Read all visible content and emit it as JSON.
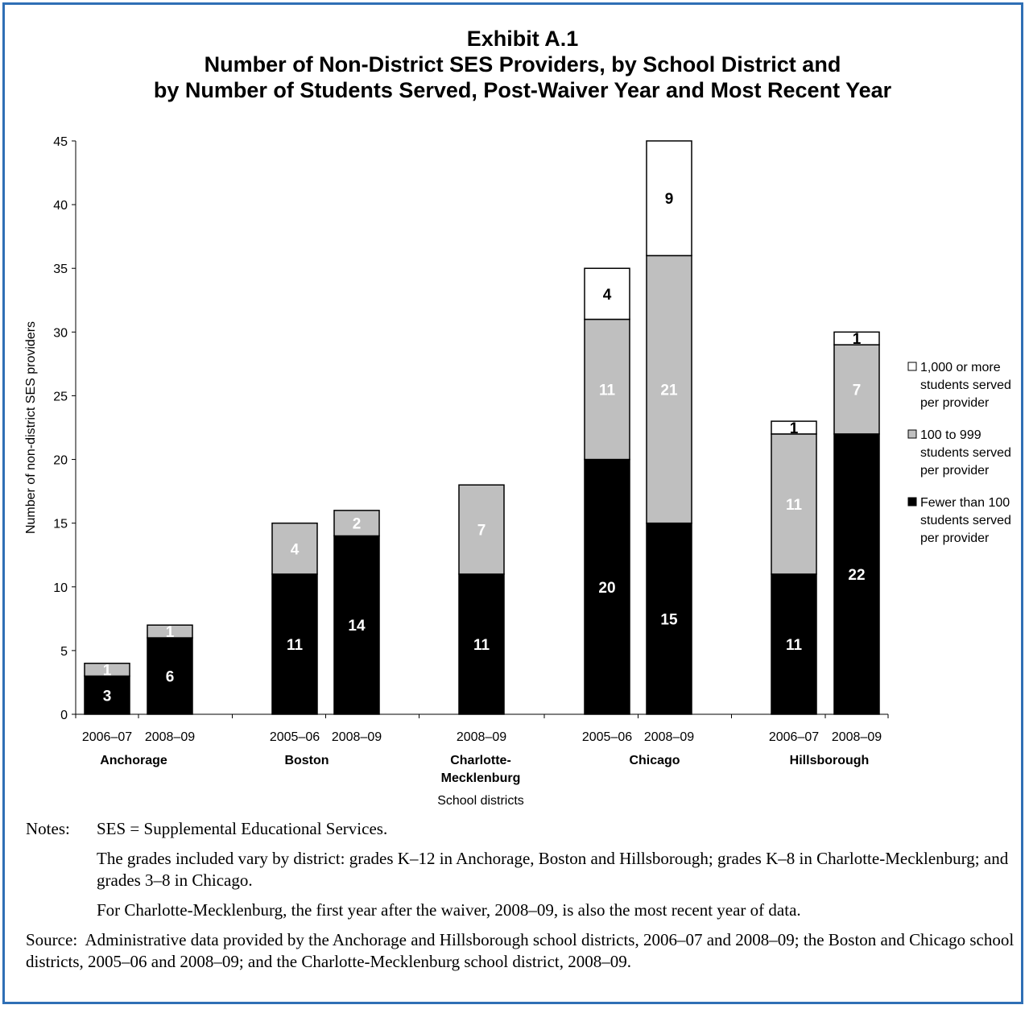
{
  "chart_data": {
    "type": "bar",
    "stacked": true,
    "title_lines": [
      "Exhibit A.1",
      "Number of Non-District SES Providers, by School District and",
      "by Number of Students Served, Post-Waiver Year and Most Recent Year"
    ],
    "xlabel": "School districts",
    "ylabel": "Number of non-district SES providers",
    "ylim": [
      0,
      45
    ],
    "yticks": [
      0,
      5,
      10,
      15,
      20,
      25,
      30,
      35,
      40,
      45
    ],
    "grid": false,
    "legend_position": "right",
    "groups": [
      {
        "label": "Anchorage",
        "label_lines": [
          "Anchorage"
        ],
        "categories": [
          "2006–07",
          "2008–09"
        ]
      },
      {
        "label": "Boston",
        "label_lines": [
          "Boston"
        ],
        "categories": [
          "2005–06",
          "2008–09"
        ]
      },
      {
        "label": "Charlotte-Mecklenburg",
        "label_lines": [
          "Charlotte-",
          "Mecklenburg"
        ],
        "categories": [
          "2008–09"
        ]
      },
      {
        "label": "Chicago",
        "label_lines": [
          "Chicago"
        ],
        "categories": [
          "2005–06",
          "2008–09"
        ]
      },
      {
        "label": "Hillsborough",
        "label_lines": [
          "Hillsborough"
        ],
        "categories": [
          "2006–07",
          "2008–09"
        ]
      }
    ],
    "series": [
      {
        "name": "Fewer than 100 students served per provider",
        "legend_lines": [
          "Fewer than 100",
          "students served",
          "per provider"
        ],
        "color": "#000000",
        "label_color": "#ffffff",
        "values": [
          3,
          6,
          11,
          14,
          11,
          20,
          15,
          11,
          22
        ]
      },
      {
        "name": "100 to 999 students served per provider",
        "legend_lines": [
          "100 to 999",
          "students served",
          "per provider"
        ],
        "color": "#bfbfbf",
        "label_color": "#ffffff",
        "values": [
          1,
          1,
          4,
          2,
          7,
          11,
          21,
          11,
          7
        ]
      },
      {
        "name": "1,000 or more students served per provider",
        "legend_lines": [
          "1,000 or more",
          "students served",
          "per provider"
        ],
        "color": "#ffffff",
        "label_color": "#000000",
        "values": [
          0,
          0,
          0,
          0,
          0,
          4,
          9,
          1,
          1
        ]
      }
    ]
  },
  "notes": {
    "label": "Notes:",
    "line1": "SES = Supplemental Educational Services.",
    "line2": "The grades included vary by district: grades K–12 in Anchorage, Boston and Hillsborough; grades K–8 in Charlotte-Mecklenburg; and grades 3–8 in Chicago.",
    "line3": "For Charlotte-Mecklenburg, the first year after the waiver, 2008–09, is also the most recent year of data."
  },
  "source": {
    "label": "Source:",
    "text": "Administrative data provided by the Anchorage and Hillsborough school districts, 2006–07 and 2008–09; the Boston and Chicago school districts, 2005–06 and 2008–09; and the Charlotte-Mecklenburg school district, 2008–09."
  }
}
